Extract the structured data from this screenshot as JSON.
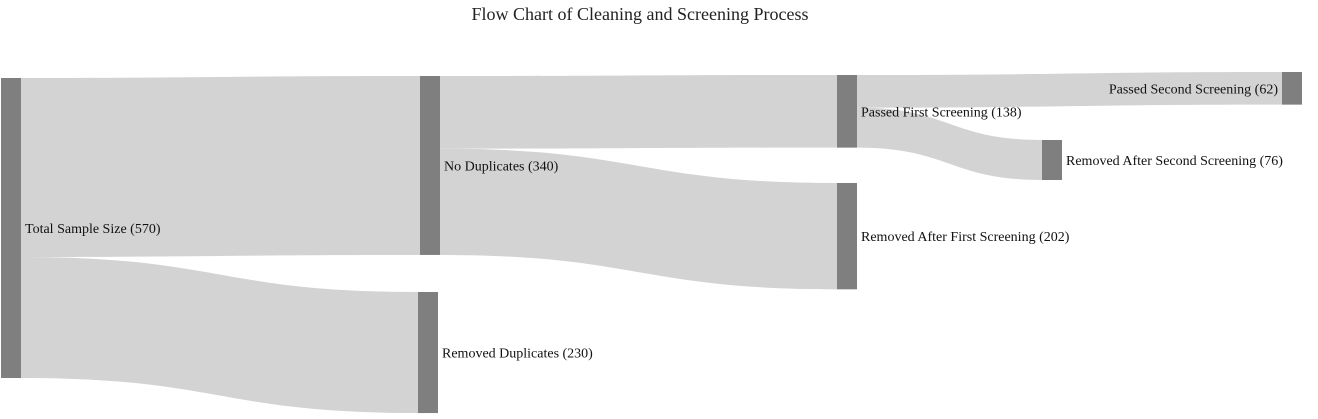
{
  "title": "Flow Chart of Cleaning and Screening Process",
  "colors": {
    "node": "#808080",
    "link": "#d3d3d3",
    "text": "#111111"
  },
  "nodes": [
    {
      "id": "total",
      "label": "Total Sample Size (570)",
      "value": 570
    },
    {
      "id": "nodup",
      "label": "No Duplicates (340)",
      "value": 340
    },
    {
      "id": "removed_dup",
      "label": "Removed Duplicates (230)",
      "value": 230
    },
    {
      "id": "passed_first",
      "label": "Passed First Screening (138)",
      "value": 138
    },
    {
      "id": "removed_first",
      "label": "Removed After First Screening (202)",
      "value": 202
    },
    {
      "id": "passed_second",
      "label": "Passed Second Screening (62)",
      "value": 62
    },
    {
      "id": "removed_second",
      "label": "Removed After Second Screening (76)",
      "value": 76
    }
  ],
  "links": [
    {
      "source": "total",
      "target": "nodup",
      "value": 340
    },
    {
      "source": "total",
      "target": "removed_dup",
      "value": 230
    },
    {
      "source": "nodup",
      "target": "passed_first",
      "value": 138
    },
    {
      "source": "nodup",
      "target": "removed_first",
      "value": 202
    },
    {
      "source": "passed_first",
      "target": "passed_second",
      "value": 62
    },
    {
      "source": "passed_first",
      "target": "removed_second",
      "value": 76
    }
  ]
}
